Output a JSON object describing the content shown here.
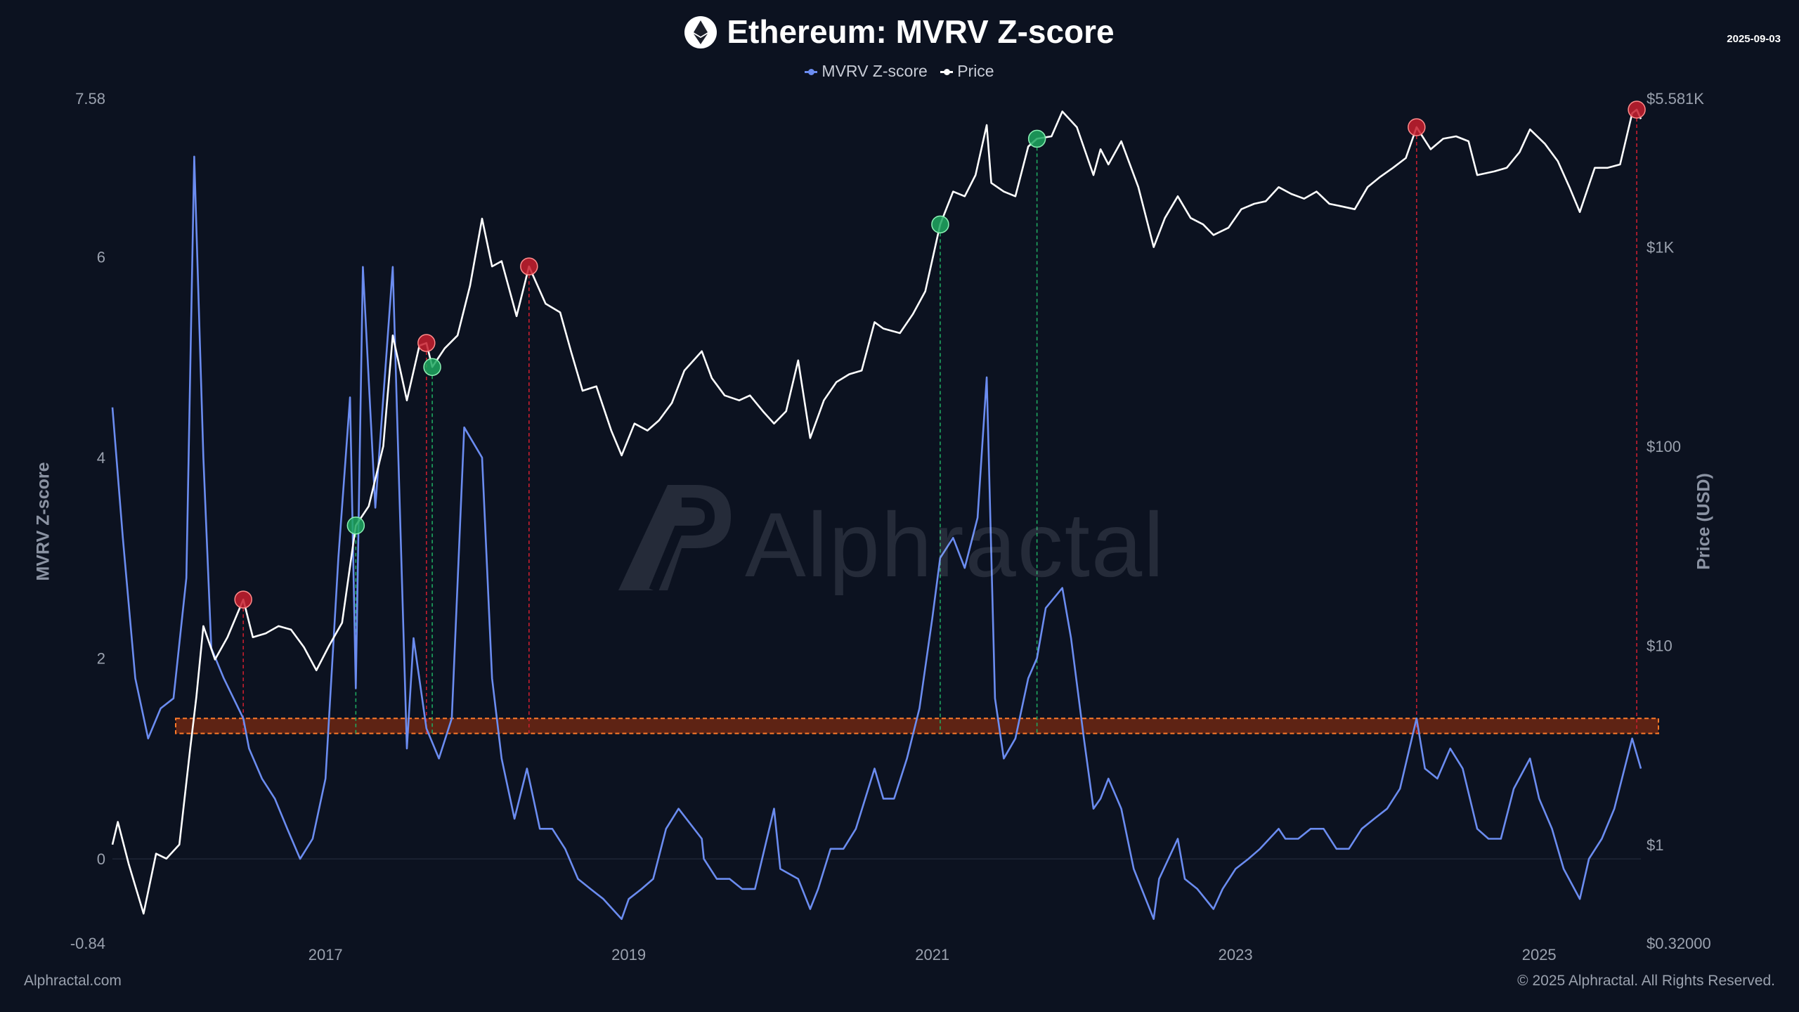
{
  "title": "Ethereum: MVRV Z-score",
  "date": "2025-09-03",
  "legend": [
    {
      "label": "MVRV Z-score",
      "color": "#6b8cf0"
    },
    {
      "label": "Price",
      "color": "#ffffff"
    }
  ],
  "watermark": "Alphractal",
  "footer": {
    "left": "Alphractal.com",
    "right": "© 2025 Alphractal. All Rights Reserved."
  },
  "chart_data": {
    "type": "line",
    "ylabel_left": "MVRV Z-score",
    "ylabel_right": "Price (USD)",
    "y_left_range": [
      -0.84,
      7.58
    ],
    "y_left_ticks": [
      {
        "value": 7.58,
        "label": "7.58"
      },
      {
        "value": 6,
        "label": "6"
      },
      {
        "value": 4,
        "label": "4"
      },
      {
        "value": 2,
        "label": "2"
      },
      {
        "value": 0,
        "label": "0"
      },
      {
        "value": -0.84,
        "label": "-0.84"
      }
    ],
    "y_right_scale": "log",
    "y_right_range": [
      0.32,
      5581
    ],
    "y_right_ticks": [
      {
        "value": 5581,
        "label": "$5.581K"
      },
      {
        "value": 1000,
        "label": "$1K"
      },
      {
        "value": 100,
        "label": "$100"
      },
      {
        "value": 10,
        "label": "$10"
      },
      {
        "value": 1,
        "label": "$1"
      },
      {
        "value": 0.32,
        "label": "$0.32000"
      }
    ],
    "x_range": [
      "2015-08-07",
      "2025-09-03"
    ],
    "x_ticks": [
      {
        "value": "2017-01-01",
        "label": "2017"
      },
      {
        "value": "2019-01-01",
        "label": "2019"
      },
      {
        "value": "2021-01-01",
        "label": "2021"
      },
      {
        "value": "2023-01-01",
        "label": "2023"
      },
      {
        "value": "2025-01-01",
        "label": "2025"
      }
    ],
    "threshold_band": [
      1.25,
      1.4
    ],
    "series": [
      {
        "name": "MVRV Z-score",
        "color": "#6b8cf0",
        "x": [
          "2015-08-07",
          "2015-09-01",
          "2015-10-01",
          "2015-11-01",
          "2015-12-01",
          "2016-01-01",
          "2016-02-01",
          "2016-02-20",
          "2016-03-13",
          "2016-04-01",
          "2016-05-01",
          "2016-06-17",
          "2016-07-01",
          "2016-08-01",
          "2016-09-01",
          "2016-10-01",
          "2016-11-01",
          "2016-12-01",
          "2017-01-01",
          "2017-02-01",
          "2017-03-01",
          "2017-03-15",
          "2017-04-01",
          "2017-05-01",
          "2017-06-12",
          "2017-07-16",
          "2017-08-01",
          "2017-09-01",
          "2017-10-01",
          "2017-11-01",
          "2017-12-01",
          "2018-01-13",
          "2018-02-06",
          "2018-03-01",
          "2018-04-01",
          "2018-05-01",
          "2018-06-01",
          "2018-07-01",
          "2018-08-01",
          "2018-09-01",
          "2018-10-01",
          "2018-11-01",
          "2018-12-15",
          "2019-01-01",
          "2019-02-01",
          "2019-03-01",
          "2019-04-01",
          "2019-05-01",
          "2019-06-26",
          "2019-07-01",
          "2019-08-01",
          "2019-09-01",
          "2019-10-01",
          "2019-11-01",
          "2019-12-17",
          "2020-01-01",
          "2020-02-13",
          "2020-03-13",
          "2020-04-01",
          "2020-05-01",
          "2020-06-01",
          "2020-07-01",
          "2020-08-15",
          "2020-09-05",
          "2020-10-01",
          "2020-11-01",
          "2020-12-01",
          "2021-01-01",
          "2021-01-20",
          "2021-02-20",
          "2021-03-20",
          "2021-04-20",
          "2021-05-12",
          "2021-06-01",
          "2021-06-22",
          "2021-07-20",
          "2021-08-20",
          "2021-09-10",
          "2021-10-01",
          "2021-11-10",
          "2021-12-01",
          "2022-01-01",
          "2022-01-24",
          "2022-02-10",
          "2022-03-01",
          "2022-04-01",
          "2022-05-01",
          "2022-06-18",
          "2022-07-01",
          "2022-08-15",
          "2022-09-01",
          "2022-10-01",
          "2022-11-09",
          "2022-12-01",
          "2023-01-01",
          "2023-02-01",
          "2023-03-01",
          "2023-04-15",
          "2023-05-01",
          "2023-06-01",
          "2023-07-01",
          "2023-08-01",
          "2023-09-01",
          "2023-10-01",
          "2023-11-01",
          "2023-12-01",
          "2024-01-01",
          "2024-02-01",
          "2024-03-12",
          "2024-04-01",
          "2024-05-01",
          "2024-06-01",
          "2024-07-01",
          "2024-08-05",
          "2024-09-01",
          "2024-10-01",
          "2024-11-01",
          "2024-12-10",
          "2025-01-01",
          "2025-02-01",
          "2025-03-01",
          "2025-04-09",
          "2025-05-01",
          "2025-06-01",
          "2025-07-01",
          "2025-08-13",
          "2025-09-03"
        ],
        "y": [
          4.5,
          3.2,
          1.8,
          1.2,
          1.5,
          1.6,
          2.8,
          7.0,
          4.0,
          2.1,
          1.8,
          1.4,
          1.1,
          0.8,
          0.6,
          0.3,
          0.0,
          0.2,
          0.8,
          3.0,
          4.6,
          1.7,
          5.9,
          3.5,
          5.9,
          1.1,
          2.2,
          1.3,
          1.0,
          1.4,
          4.3,
          4.0,
          1.8,
          1.0,
          0.4,
          0.9,
          0.3,
          0.3,
          0.1,
          -0.2,
          -0.3,
          -0.4,
          -0.6,
          -0.4,
          -0.3,
          -0.2,
          0.3,
          0.5,
          0.2,
          0.0,
          -0.2,
          -0.2,
          -0.3,
          -0.3,
          0.5,
          -0.1,
          -0.2,
          -0.5,
          -0.3,
          0.1,
          0.1,
          0.3,
          0.9,
          0.6,
          0.6,
          1.0,
          1.5,
          2.4,
          3.0,
          3.2,
          2.9,
          3.4,
          4.8,
          1.6,
          1.0,
          1.2,
          1.8,
          2.0,
          2.5,
          2.7,
          2.2,
          1.2,
          0.5,
          0.6,
          0.8,
          0.5,
          -0.1,
          -0.6,
          -0.2,
          0.2,
          -0.2,
          -0.3,
          -0.5,
          -0.3,
          -0.1,
          0.0,
          0.1,
          0.3,
          0.2,
          0.2,
          0.3,
          0.3,
          0.1,
          0.1,
          0.3,
          0.4,
          0.5,
          0.7,
          1.4,
          0.9,
          0.8,
          1.1,
          0.9,
          0.3,
          0.2,
          0.2,
          0.7,
          1.0,
          0.6,
          0.3,
          -0.1,
          -0.4,
          0.0,
          0.2,
          0.5,
          1.2,
          0.9
        ]
      },
      {
        "name": "Price",
        "color": "#ffffff",
        "x": [
          "2015-08-07",
          "2015-08-20",
          "2015-09-15",
          "2015-10-21",
          "2015-11-20",
          "2015-12-15",
          "2016-01-15",
          "2016-02-10",
          "2016-02-25",
          "2016-03-13",
          "2016-04-10",
          "2016-05-10",
          "2016-06-17",
          "2016-07-10",
          "2016-08-10",
          "2016-09-10",
          "2016-10-10",
          "2016-11-10",
          "2016-12-10",
          "2017-01-10",
          "2017-02-10",
          "2017-03-15",
          "2017-04-15",
          "2017-05-20",
          "2017-06-12",
          "2017-07-16",
          "2017-08-15",
          "2017-09-01",
          "2017-09-15",
          "2017-10-15",
          "2017-11-15",
          "2017-12-15",
          "2018-01-13",
          "2018-02-06",
          "2018-03-01",
          "2018-04-06",
          "2018-05-06",
          "2018-06-15",
          "2018-07-20",
          "2018-08-15",
          "2018-09-12",
          "2018-10-15",
          "2018-11-20",
          "2018-12-15",
          "2019-01-15",
          "2019-02-15",
          "2019-03-15",
          "2019-04-15",
          "2019-05-15",
          "2019-06-26",
          "2019-07-20",
          "2019-08-20",
          "2019-09-24",
          "2019-10-20",
          "2019-11-20",
          "2019-12-17",
          "2020-01-15",
          "2020-02-13",
          "2020-03-13",
          "2020-04-15",
          "2020-05-15",
          "2020-06-15",
          "2020-07-15",
          "2020-08-15",
          "2020-09-05",
          "2020-10-15",
          "2020-11-15",
          "2020-12-15",
          "2021-01-20",
          "2021-02-20",
          "2021-03-20",
          "2021-04-15",
          "2021-05-12",
          "2021-05-23",
          "2021-06-22",
          "2021-07-20",
          "2021-08-20",
          "2021-09-10",
          "2021-10-15",
          "2021-11-10",
          "2021-12-15",
          "2022-01-24",
          "2022-02-10",
          "2022-03-01",
          "2022-04-01",
          "2022-05-12",
          "2022-06-18",
          "2022-07-15",
          "2022-08-15",
          "2022-09-15",
          "2022-10-15",
          "2022-11-09",
          "2022-12-15",
          "2023-01-15",
          "2023-02-15",
          "2023-03-15",
          "2023-04-15",
          "2023-05-15",
          "2023-06-15",
          "2023-07-15",
          "2023-08-15",
          "2023-09-15",
          "2023-10-15",
          "2023-11-15",
          "2023-12-15",
          "2024-01-15",
          "2024-02-15",
          "2024-03-12",
          "2024-04-15",
          "2024-05-15",
          "2024-06-15",
          "2024-07-15",
          "2024-08-05",
          "2024-09-15",
          "2024-10-15",
          "2024-11-15",
          "2024-12-10",
          "2025-01-15",
          "2025-02-15",
          "2025-03-15",
          "2025-04-09",
          "2025-05-15",
          "2025-06-15",
          "2025-07-15",
          "2025-08-13",
          "2025-08-24",
          "2025-09-03"
        ],
        "y": [
          1.0,
          1.3,
          0.8,
          0.45,
          0.9,
          0.85,
          1.0,
          3.0,
          5.5,
          12.5,
          8.5,
          11.0,
          17.0,
          11.0,
          11.5,
          12.5,
          12.0,
          9.8,
          7.5,
          10.0,
          13.0,
          40.0,
          50.0,
          100.0,
          360.0,
          170.0,
          320.0,
          330.0,
          250.0,
          310.0,
          360.0,
          640.0,
          1390.0,
          800.0,
          850.0,
          450.0,
          800.0,
          520.0,
          470.0,
          300.0,
          190.0,
          200.0,
          120.0,
          90.0,
          130.0,
          120.0,
          135.0,
          165.0,
          240.0,
          300.0,
          220.0,
          180.0,
          170.0,
          180.0,
          150.0,
          130.0,
          150.0,
          270.0,
          110.0,
          170.0,
          210.0,
          230.0,
          240.0,
          420.0,
          390.0,
          370.0,
          460.0,
          600.0,
          1300.0,
          1900.0,
          1800.0,
          2300.0,
          4100.0,
          2100.0,
          1900.0,
          1800.0,
          3200.0,
          3500.0,
          3600.0,
          4800.0,
          4000.0,
          2300.0,
          3100.0,
          2600.0,
          3400.0,
          2000.0,
          1000.0,
          1400.0,
          1800.0,
          1400.0,
          1300.0,
          1150.0,
          1250.0,
          1550.0,
          1650.0,
          1700.0,
          2000.0,
          1850.0,
          1750.0,
          1900.0,
          1650.0,
          1600.0,
          1550.0,
          2000.0,
          2250.0,
          2500.0,
          2800.0,
          4000.0,
          3100.0,
          3500.0,
          3600.0,
          3400.0,
          2300.0,
          2400.0,
          2500.0,
          3000.0,
          3900.0,
          3300.0,
          2700.0,
          2000.0,
          1500.0,
          2500.0,
          2500.0,
          2600.0,
          4700.0,
          4900.0,
          4400.0
        ]
      }
    ],
    "signals": [
      {
        "type": "top",
        "date": "2016-06-17",
        "price": 17.0
      },
      {
        "type": "bottom",
        "date": "2017-03-15",
        "price": 40.0
      },
      {
        "type": "top",
        "date": "2017-09-01",
        "price": 330.0
      },
      {
        "type": "bottom",
        "date": "2017-09-15",
        "price": 250.0
      },
      {
        "type": "top",
        "date": "2018-05-06",
        "price": 800.0
      },
      {
        "type": "bottom",
        "date": "2021-01-20",
        "price": 1300.0
      },
      {
        "type": "bottom",
        "date": "2021-09-10",
        "price": 3500.0
      },
      {
        "type": "top",
        "date": "2024-03-12",
        "price": 4000.0
      },
      {
        "type": "top",
        "date": "2025-08-24",
        "price": 4900.0
      }
    ]
  }
}
